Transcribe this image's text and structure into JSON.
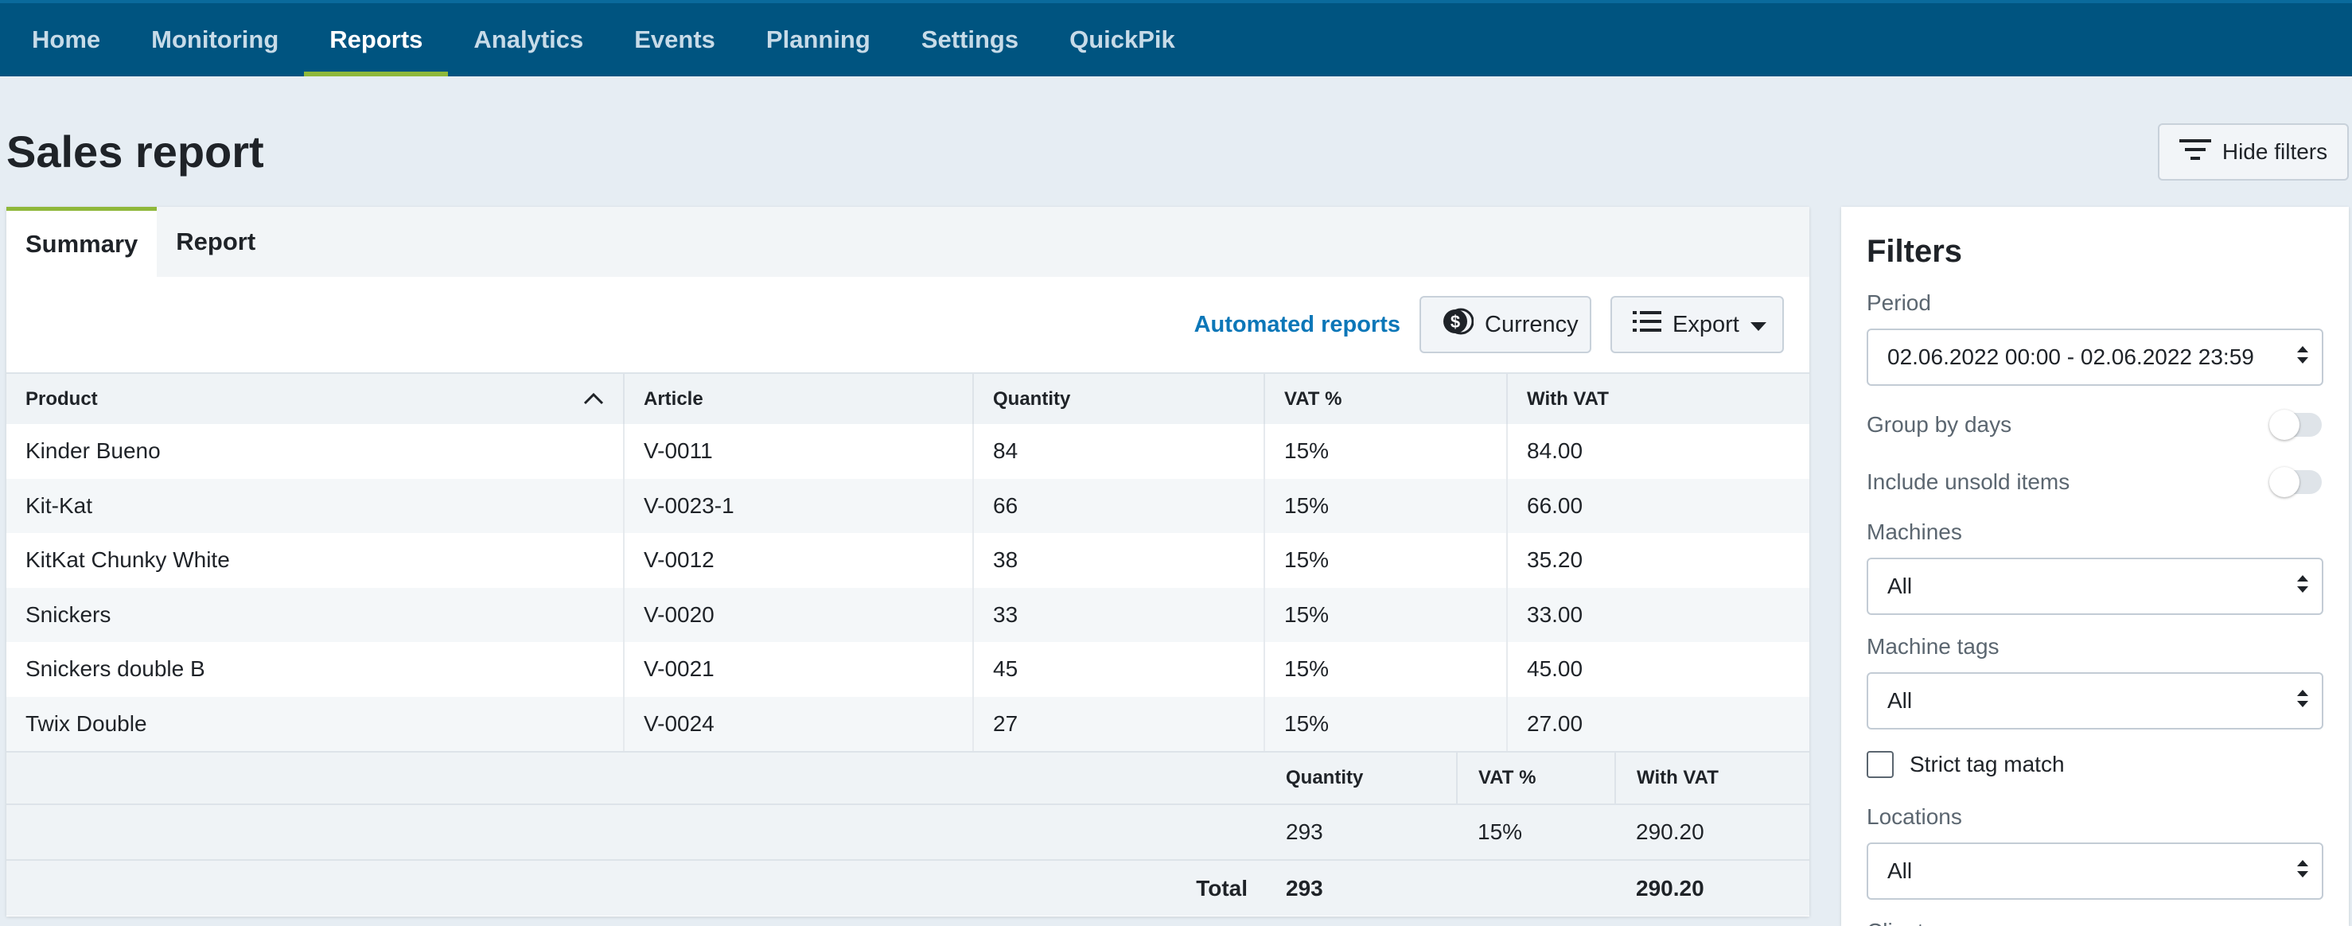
{
  "nav": {
    "items": [
      {
        "label": "Home",
        "name": "home"
      },
      {
        "label": "Monitoring",
        "name": "monitoring"
      },
      {
        "label": "Reports",
        "name": "reports",
        "active": true
      },
      {
        "label": "Analytics",
        "name": "analytics"
      },
      {
        "label": "Events",
        "name": "events"
      },
      {
        "label": "Planning",
        "name": "planning"
      },
      {
        "label": "Settings",
        "name": "settings"
      },
      {
        "label": "QuickPik",
        "name": "quickpik"
      }
    ]
  },
  "page": {
    "title": "Sales report",
    "hide_filters_label": "Hide filters"
  },
  "tabs": [
    {
      "label": "Summary",
      "active": true
    },
    {
      "label": "Report",
      "active": false
    }
  ],
  "toolbar": {
    "automated_reports": "Automated reports",
    "currency": "Currency",
    "export": "Export"
  },
  "table": {
    "columns": [
      "Product",
      "Article",
      "Quantity",
      "VAT %",
      "With VAT"
    ],
    "rows": [
      [
        "Kinder Bueno",
        "V-0011",
        "84",
        "15%",
        "84.00"
      ],
      [
        "Kit-Kat",
        "V-0023-1",
        "66",
        "15%",
        "66.00"
      ],
      [
        "KitKat Chunky White",
        "V-0012",
        "38",
        "15%",
        "35.20"
      ],
      [
        "Snickers",
        "V-0020",
        "33",
        "15%",
        "33.00"
      ],
      [
        "Snickers double B",
        "V-0021",
        "45",
        "15%",
        "45.00"
      ],
      [
        "Twix Double",
        "V-0024",
        "27",
        "15%",
        "27.00"
      ]
    ]
  },
  "summary": {
    "columns": [
      "Quantity",
      "VAT %",
      "With VAT"
    ],
    "values": [
      "293",
      "15%",
      "290.20"
    ],
    "total_label": "Total",
    "total_quantity": "293",
    "total_with_vat": "290.20"
  },
  "filters": {
    "title": "Filters",
    "period_label": "Period",
    "period_value": "02.06.2022 00:00 - 02.06.2022 23:59",
    "group_by_days": "Group by days",
    "include_unsold": "Include unsold items",
    "machines_label": "Machines",
    "machines_value": "All",
    "machine_tags_label": "Machine tags",
    "machine_tags_value": "All",
    "strict_tag_match": "Strict tag match",
    "locations_label": "Locations",
    "locations_value": "All",
    "clients_label": "Clients"
  },
  "colors": {
    "nav_bg": "#005480",
    "accent": "#8fb83a",
    "link": "#0c77b8"
  }
}
